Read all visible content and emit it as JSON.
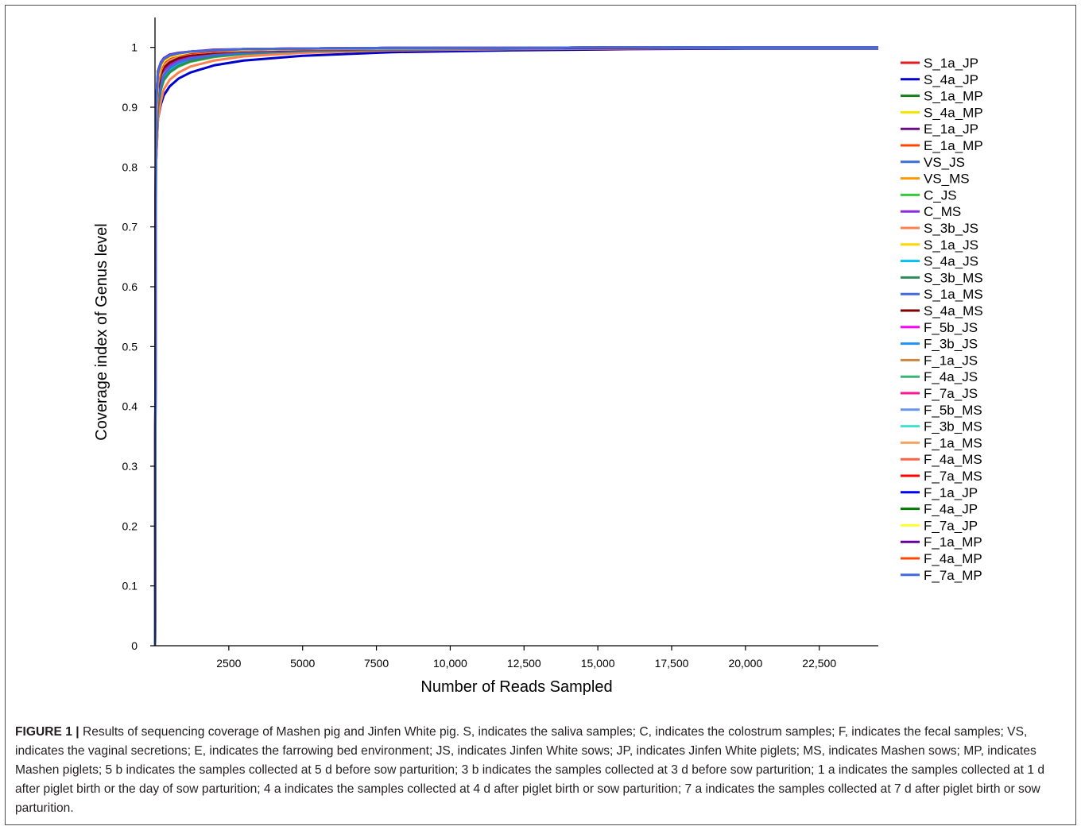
{
  "figure": {
    "label": "FIGURE 1 |",
    "caption": "Results of sequencing coverage of Mashen pig and Jinfen White pig. S, indicates the saliva samples; C, indicates the colostrum samples; F, indicates the fecal samples; VS, indicates the vaginal secretions; E, indicates the farrowing bed environment; JS, indicates Jinfen White sows; JP, indicates Jinfen White piglets; MS, indicates Mashen sows; MP, indicates Mashen piglets; 5 b indicates the samples collected at 5 d before sow parturition; 3 b indicates the samples collected at 3 d before sow parturition; 1 a indicates the samples collected at 1 d after piglet birth or the day of sow parturition; 4 a indicates the samples collected at 4 d after piglet birth or sow parturition; 7 a indicates the samples collected at 7 d after piglet birth or sow parturition."
  },
  "chart_data": {
    "type": "line",
    "title": "",
    "xlabel": "Number of Reads Sampled",
    "ylabel": "Coverage index of Genus level",
    "xlim": [
      0,
      24500
    ],
    "ylim": [
      0,
      1.05
    ],
    "x_ticks": [
      2500,
      5000,
      7500,
      10000,
      12500,
      15000,
      17500,
      20000,
      22500
    ],
    "x_tick_labels": [
      "2500",
      "5000",
      "7500",
      "10,000",
      "12,500",
      "15,000",
      "17,500",
      "20,000",
      "22,500"
    ],
    "y_ticks": [
      0,
      0.1,
      0.2,
      0.3,
      0.4,
      0.5,
      0.6,
      0.7,
      0.8,
      0.9,
      1
    ],
    "y_tick_labels": [
      "0",
      "0.1",
      "0.2",
      "0.3",
      "0.4",
      "0.5",
      "0.6",
      "0.7",
      "0.8",
      "0.9",
      "1"
    ],
    "grid": false,
    "legend_position": "right",
    "x": [
      0,
      30,
      100,
      200,
      300,
      500,
      800,
      1200,
      2000,
      3000,
      5000,
      8000,
      12000,
      16000,
      20000,
      24500
    ],
    "series": [
      {
        "name": "S_1a_JP",
        "color": "#e41a1c",
        "values": [
          0,
          0.86,
          0.92,
          0.95,
          0.962,
          0.972,
          0.98,
          0.985,
          0.99,
          0.993,
          0.996,
          0.998,
          0.999,
          0.999,
          0.999,
          0.999
        ]
      },
      {
        "name": "S_4a_JP",
        "color": "#0000cc",
        "values": [
          0,
          0.8,
          0.88,
          0.905,
          0.92,
          0.935,
          0.948,
          0.958,
          0.97,
          0.978,
          0.986,
          0.992,
          0.995,
          0.997,
          0.998,
          0.998
        ]
      },
      {
        "name": "S_1a_MP",
        "color": "#1a7f1a",
        "values": [
          0,
          0.84,
          0.91,
          0.94,
          0.955,
          0.967,
          0.975,
          0.981,
          0.987,
          0.991,
          0.995,
          0.997,
          0.998,
          0.999,
          0.999,
          0.999
        ]
      },
      {
        "name": "S_4a_MP",
        "color": "#f2e600",
        "values": [
          0,
          0.83,
          0.905,
          0.935,
          0.95,
          0.962,
          0.972,
          0.979,
          0.986,
          0.99,
          0.994,
          0.997,
          0.998,
          0.999,
          0.999,
          0.999
        ]
      },
      {
        "name": "E_1a_JP",
        "color": "#6a0d83",
        "values": [
          0,
          0.9,
          0.96,
          0.975,
          0.982,
          0.987,
          0.99,
          0.993,
          0.995,
          0.997,
          0.998,
          0.999,
          0.999,
          1,
          1,
          1
        ]
      },
      {
        "name": "E_1a_MP",
        "color": "#ff4500",
        "values": [
          0,
          0.88,
          0.95,
          0.97,
          0.978,
          0.984,
          0.988,
          0.991,
          0.994,
          0.996,
          0.998,
          0.999,
          0.999,
          1,
          1,
          1
        ]
      },
      {
        "name": "VS_JS",
        "color": "#3a6fd8",
        "values": [
          0,
          0.85,
          0.92,
          0.945,
          0.958,
          0.968,
          0.976,
          0.982,
          0.988,
          0.992,
          0.995,
          0.997,
          0.998,
          0.999,
          0.999,
          0.999
        ]
      },
      {
        "name": "VS_MS",
        "color": "#ff9900",
        "values": [
          0,
          0.84,
          0.915,
          0.94,
          0.955,
          0.966,
          0.975,
          0.981,
          0.987,
          0.991,
          0.995,
          0.997,
          0.998,
          0.999,
          0.999,
          0.999
        ]
      },
      {
        "name": "C_JS",
        "color": "#33cc33",
        "values": [
          0,
          0.83,
          0.9,
          0.93,
          0.945,
          0.958,
          0.968,
          0.976,
          0.984,
          0.989,
          0.993,
          0.996,
          0.998,
          0.999,
          0.999,
          0.999
        ]
      },
      {
        "name": "C_MS",
        "color": "#8a2be2",
        "values": [
          0,
          0.85,
          0.92,
          0.947,
          0.96,
          0.97,
          0.978,
          0.983,
          0.989,
          0.992,
          0.995,
          0.997,
          0.998,
          0.999,
          0.999,
          0.999
        ]
      },
      {
        "name": "S_3b_JS",
        "color": "#ff7f50",
        "values": [
          0,
          0.8,
          0.88,
          0.91,
          0.93,
          0.946,
          0.958,
          0.968,
          0.978,
          0.985,
          0.991,
          0.995,
          0.997,
          0.998,
          0.999,
          0.999
        ]
      },
      {
        "name": "S_1a_JS",
        "color": "#ffd700",
        "values": [
          0,
          0.84,
          0.91,
          0.94,
          0.955,
          0.966,
          0.975,
          0.981,
          0.987,
          0.991,
          0.995,
          0.997,
          0.998,
          0.999,
          0.999,
          0.999
        ]
      },
      {
        "name": "S_4a_JS",
        "color": "#00bfff",
        "values": [
          0,
          0.83,
          0.905,
          0.935,
          0.95,
          0.962,
          0.972,
          0.979,
          0.986,
          0.99,
          0.994,
          0.997,
          0.998,
          0.999,
          0.999,
          0.999
        ]
      },
      {
        "name": "S_3b_MS",
        "color": "#2e8b57",
        "values": [
          0,
          0.82,
          0.9,
          0.93,
          0.946,
          0.959,
          0.969,
          0.977,
          0.985,
          0.99,
          0.994,
          0.996,
          0.998,
          0.999,
          0.999,
          0.999
        ]
      },
      {
        "name": "S_1a_MS",
        "color": "#4169e1",
        "values": [
          0,
          0.84,
          0.91,
          0.94,
          0.954,
          0.966,
          0.975,
          0.981,
          0.987,
          0.991,
          0.995,
          0.997,
          0.998,
          0.999,
          0.999,
          0.999
        ]
      },
      {
        "name": "S_4a_MS",
        "color": "#800000",
        "values": [
          0,
          0.86,
          0.93,
          0.955,
          0.966,
          0.975,
          0.982,
          0.987,
          0.991,
          0.994,
          0.996,
          0.998,
          0.999,
          0.999,
          1,
          1
        ]
      },
      {
        "name": "F_5b_JS",
        "color": "#ff00ff",
        "values": [
          0,
          0.88,
          0.95,
          0.968,
          0.976,
          0.983,
          0.988,
          0.991,
          0.994,
          0.996,
          0.998,
          0.999,
          0.999,
          1,
          1,
          1
        ]
      },
      {
        "name": "F_3b_JS",
        "color": "#1e90ff",
        "values": [
          0,
          0.87,
          0.945,
          0.965,
          0.975,
          0.982,
          0.987,
          0.99,
          0.994,
          0.996,
          0.998,
          0.999,
          0.999,
          1,
          1,
          1
        ]
      },
      {
        "name": "F_1a_JS",
        "color": "#cd853f",
        "values": [
          0,
          0.86,
          0.94,
          0.962,
          0.972,
          0.98,
          0.986,
          0.99,
          0.993,
          0.995,
          0.997,
          0.998,
          0.999,
          1,
          1,
          1
        ]
      },
      {
        "name": "F_4a_JS",
        "color": "#3cb371",
        "values": [
          0,
          0.87,
          0.944,
          0.964,
          0.974,
          0.981,
          0.987,
          0.99,
          0.994,
          0.996,
          0.998,
          0.999,
          0.999,
          1,
          1,
          1
        ]
      },
      {
        "name": "F_7a_JS",
        "color": "#ff1493",
        "values": [
          0,
          0.88,
          0.948,
          0.967,
          0.976,
          0.983,
          0.988,
          0.991,
          0.994,
          0.996,
          0.998,
          0.999,
          0.999,
          1,
          1,
          1
        ]
      },
      {
        "name": "F_5b_MS",
        "color": "#6495ed",
        "values": [
          0,
          0.88,
          0.95,
          0.968,
          0.977,
          0.984,
          0.988,
          0.992,
          0.995,
          0.996,
          0.998,
          0.999,
          0.999,
          1,
          1,
          1
        ]
      },
      {
        "name": "F_3b_MS",
        "color": "#40e0d0",
        "values": [
          0,
          0.87,
          0.946,
          0.966,
          0.975,
          0.982,
          0.987,
          0.991,
          0.994,
          0.996,
          0.998,
          0.999,
          0.999,
          1,
          1,
          1
        ]
      },
      {
        "name": "F_1a_MS",
        "color": "#f4a460",
        "values": [
          0,
          0.86,
          0.94,
          0.962,
          0.973,
          0.981,
          0.986,
          0.99,
          0.993,
          0.995,
          0.997,
          0.998,
          0.999,
          1,
          1,
          1
        ]
      },
      {
        "name": "F_4a_MS",
        "color": "#ff6347",
        "values": [
          0,
          0.87,
          0.944,
          0.964,
          0.974,
          0.982,
          0.987,
          0.99,
          0.994,
          0.996,
          0.998,
          0.999,
          0.999,
          1,
          1,
          1
        ]
      },
      {
        "name": "F_7a_MS",
        "color": "#ff0000",
        "values": [
          0,
          0.88,
          0.948,
          0.967,
          0.976,
          0.983,
          0.988,
          0.991,
          0.994,
          0.996,
          0.998,
          0.999,
          0.999,
          1,
          1,
          1
        ]
      },
      {
        "name": "F_1a_JP",
        "color": "#0000ff",
        "values": [
          0,
          0.89,
          0.955,
          0.972,
          0.98,
          0.986,
          0.99,
          0.993,
          0.995,
          0.997,
          0.998,
          0.999,
          0.999,
          1,
          1,
          1
        ]
      },
      {
        "name": "F_4a_JP",
        "color": "#007a00",
        "values": [
          0,
          0.88,
          0.95,
          0.968,
          0.977,
          0.984,
          0.988,
          0.992,
          0.995,
          0.996,
          0.998,
          0.999,
          0.999,
          1,
          1,
          1
        ]
      },
      {
        "name": "F_7a_JP",
        "color": "#ffff33",
        "values": [
          0,
          0.88,
          0.95,
          0.968,
          0.977,
          0.984,
          0.988,
          0.992,
          0.995,
          0.996,
          0.998,
          0.999,
          0.999,
          1,
          1,
          1
        ]
      },
      {
        "name": "F_1a_MP",
        "color": "#660099",
        "values": [
          0,
          0.9,
          0.96,
          0.975,
          0.982,
          0.988,
          0.991,
          0.993,
          0.996,
          0.997,
          0.998,
          0.999,
          0.999,
          1,
          1,
          1
        ]
      },
      {
        "name": "F_4a_MP",
        "color": "#ff4500",
        "values": [
          0,
          0.89,
          0.955,
          0.972,
          0.98,
          0.986,
          0.99,
          0.993,
          0.995,
          0.997,
          0.998,
          0.999,
          0.999,
          1,
          1,
          1
        ]
      },
      {
        "name": "F_7a_MP",
        "color": "#4169e1",
        "values": [
          0,
          0.9,
          0.958,
          0.974,
          0.981,
          0.987,
          0.99,
          0.993,
          0.995,
          0.997,
          0.998,
          0.999,
          0.999,
          1,
          1,
          1
        ]
      }
    ]
  }
}
